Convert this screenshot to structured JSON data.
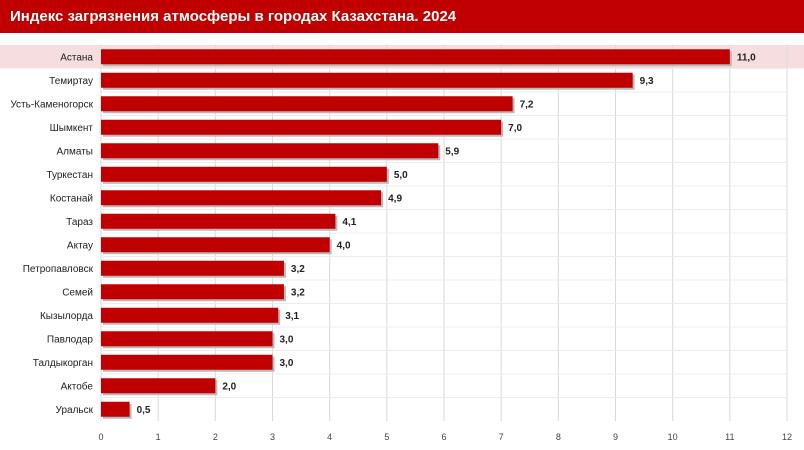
{
  "header": {
    "title": "Индекс загрязнения атмосферы в городах Казахстана. 2024"
  },
  "colors": {
    "title_background": "#c00000",
    "bar": "#c00000",
    "highlight_row": "#f6dede",
    "grid": "#d9d9d9"
  },
  "chart_data": {
    "type": "bar",
    "orientation": "horizontal",
    "title": "Индекс загрязнения атмосферы в городах Казахстана. 2024",
    "xlabel": "",
    "ylabel": "",
    "categories": [
      "Астана",
      "Темиртау",
      "Усть-Каменогорск",
      "Шымкент",
      "Алматы",
      "Туркестан",
      "Костанай",
      "Тараз",
      "Актау",
      "Петропавловск",
      "Семей",
      "Кызылорда",
      "Павлодар",
      "Талдыкорган",
      "Актобе",
      "Уральск"
    ],
    "values": [
      11.0,
      9.3,
      7.2,
      7.0,
      5.9,
      5.0,
      4.9,
      4.1,
      4.0,
      3.2,
      3.2,
      3.1,
      3.0,
      3.0,
      2.0,
      0.5
    ],
    "value_labels": [
      "11,0",
      "9,3",
      "7,2",
      "7,0",
      "5,9",
      "5,0",
      "4,9",
      "4,1",
      "4,0",
      "3,2",
      "3,2",
      "3,1",
      "3,0",
      "3,0",
      "2,0",
      "0,5"
    ],
    "xlim": [
      0,
      12
    ],
    "xticks": [
      "0",
      "1",
      "2",
      "3",
      "4",
      "5",
      "6",
      "7",
      "8",
      "9",
      "10",
      "11",
      "12"
    ],
    "grid": "vertical",
    "highlighted_category": "Астана"
  }
}
